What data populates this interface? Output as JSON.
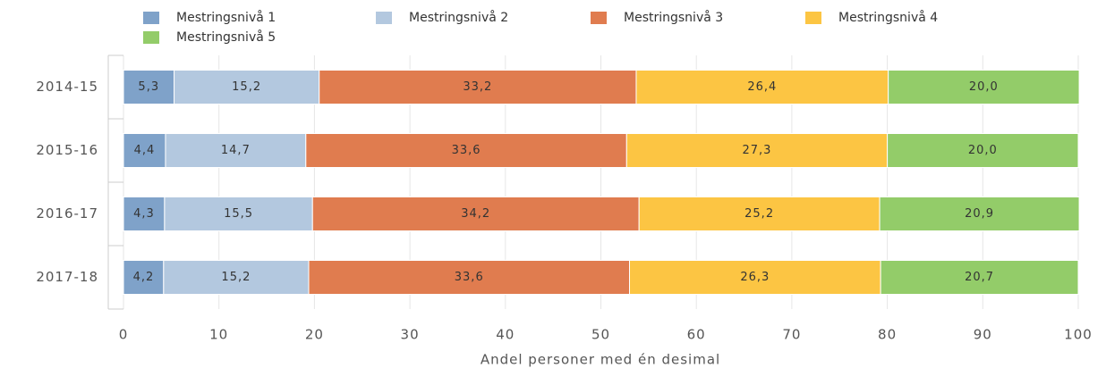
{
  "chart_data": {
    "type": "stacked-bar-horizontal",
    "x_label": "Andel personer med én desimal",
    "categories": [
      "2014-15",
      "2015-16",
      "2016-17",
      "2017-18"
    ],
    "series": [
      {
        "name": "Mestringsnivå 1",
        "color": "#7fa2c9",
        "values": [
          5.3,
          4.4,
          4.3,
          4.2
        ],
        "value_labels": [
          "5,3",
          "4,4",
          "4,3",
          "4,2"
        ]
      },
      {
        "name": "Mestringsnivå 2",
        "color": "#b3c8df",
        "values": [
          15.2,
          14.7,
          15.5,
          15.2
        ],
        "value_labels": [
          "15,2",
          "14,7",
          "15,5",
          "15,2"
        ]
      },
      {
        "name": "Mestringsnivå 3",
        "color": "#e07c4f",
        "values": [
          33.2,
          33.6,
          34.2,
          33.6
        ],
        "value_labels": [
          "33,2",
          "33,6",
          "34,2",
          "33,6"
        ]
      },
      {
        "name": "Mestringsnivå 4",
        "color": "#fcc543",
        "values": [
          26.4,
          27.3,
          25.2,
          26.3
        ],
        "value_labels": [
          "26,4",
          "27,3",
          "25,2",
          "26,3"
        ]
      },
      {
        "name": "Mestringsnivå 5",
        "color": "#93cc69",
        "values": [
          20.0,
          20.0,
          20.9,
          20.7
        ],
        "value_labels": [
          "20,0",
          "20,0",
          "20,9",
          "20,7"
        ]
      }
    ],
    "xlim": [
      0,
      100
    ],
    "xticks": [
      0,
      10,
      20,
      30,
      40,
      50,
      60,
      70,
      80,
      90,
      100
    ],
    "grid": true
  }
}
